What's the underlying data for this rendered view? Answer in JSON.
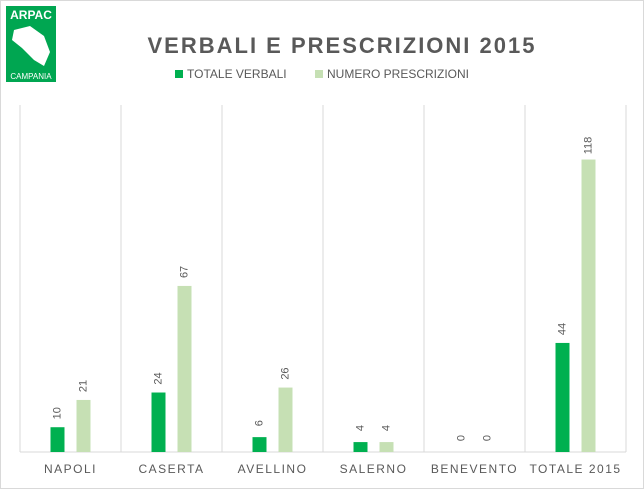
{
  "logo": {
    "top": "ARPAC",
    "bottom": "CAMPANIA"
  },
  "chart_data": {
    "type": "bar",
    "title": "VERBALI E PRESCRIZIONI 2015",
    "categories": [
      "NAPOLI",
      "CASERTA",
      "AVELLINO",
      "SALERNO",
      "BENEVENTO",
      "TOTALE 2015"
    ],
    "series": [
      {
        "name": "TOTALE VERBALI",
        "color": "#00b050",
        "values": [
          10,
          24,
          6,
          4,
          0,
          44
        ]
      },
      {
        "name": "NUMERO PRESCRIZIONI",
        "color": "#c6e0b4",
        "values": [
          21,
          67,
          26,
          4,
          0,
          118
        ]
      }
    ],
    "ylim": [
      0,
      140
    ],
    "legend": "top"
  }
}
